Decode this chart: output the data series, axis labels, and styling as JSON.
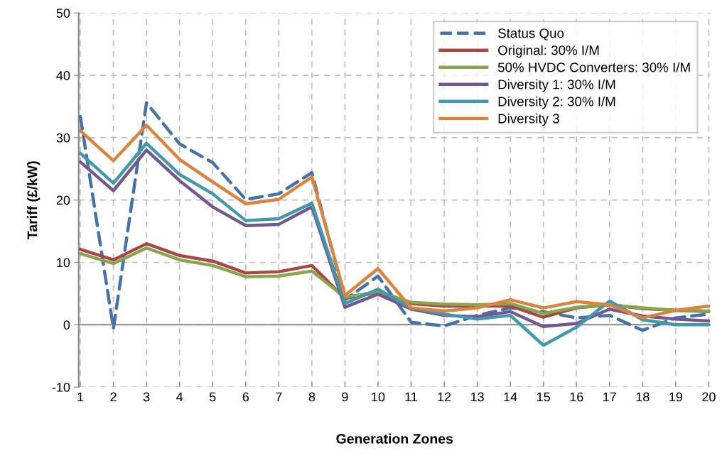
{
  "chart_data": {
    "type": "line",
    "xlabel": "Generation Zones",
    "ylabel": "Tariff (£/kW)",
    "categories": [
      "1",
      "2",
      "3",
      "4",
      "5",
      "6",
      "7",
      "8",
      "9",
      "10",
      "11",
      "12",
      "13",
      "14",
      "15",
      "16",
      "17",
      "18",
      "19",
      "20"
    ],
    "ylim": [
      -10,
      50
    ],
    "yticks": [
      -10,
      0,
      10,
      20,
      30,
      40,
      50
    ],
    "grid": true,
    "legend": "top right",
    "marker": "none",
    "series": [
      {
        "name": "Status Quo",
        "color": "#4572a7",
        "line_style": "dashed",
        "values": [
          33.4,
          -0.6,
          35.6,
          29.0,
          26.0,
          20.1,
          21.0,
          24.4,
          4.0,
          7.8,
          0.4,
          -0.2,
          1.5,
          2.7,
          2.1,
          1.1,
          1.5,
          -0.9,
          1.1,
          1.7
        ]
      },
      {
        "name": "Original: 30% I/M",
        "color": "#aa4643",
        "line_style": "solid",
        "values": [
          12.1,
          10.4,
          13.0,
          11.1,
          10.2,
          8.3,
          8.5,
          9.5,
          4.2,
          5.2,
          3.4,
          3.0,
          3.0,
          3.0,
          1.2,
          2.7,
          3.2,
          2.6,
          2.3,
          2.1
        ]
      },
      {
        "name": "50% HVDC Converters: 30% I/M",
        "color": "#89a54e",
        "line_style": "solid",
        "values": [
          11.4,
          9.8,
          12.3,
          10.4,
          9.5,
          7.7,
          7.8,
          8.6,
          4.4,
          5.3,
          3.6,
          3.3,
          3.2,
          3.4,
          1.8,
          2.8,
          3.2,
          2.7,
          2.3,
          2.2
        ]
      },
      {
        "name": "Diversity 1: 30% I/M",
        "color": "#71588f",
        "line_style": "solid",
        "values": [
          26.1,
          21.5,
          28.0,
          23.1,
          18.9,
          15.9,
          16.1,
          18.9,
          2.8,
          4.9,
          2.5,
          1.5,
          1.3,
          2.1,
          -0.3,
          0.2,
          2.5,
          1.4,
          0.9,
          0.6
        ]
      },
      {
        "name": "Diversity 2: 30% I/M",
        "color": "#4198af",
        "line_style": "solid",
        "values": [
          27.5,
          22.7,
          29.1,
          24.1,
          21.0,
          16.7,
          17.0,
          19.5,
          3.4,
          5.7,
          2.7,
          1.7,
          0.9,
          1.5,
          -3.3,
          -0.4,
          3.8,
          0.8,
          0.0,
          0.0
        ]
      },
      {
        "name": "Diversity 3",
        "color": "#db843d",
        "line_style": "solid",
        "values": [
          31.1,
          26.3,
          32.0,
          26.5,
          22.9,
          19.4,
          20.1,
          23.7,
          4.7,
          9.0,
          2.7,
          2.2,
          2.7,
          4.0,
          2.7,
          3.7,
          3.2,
          1.1,
          2.3,
          3.0
        ]
      }
    ]
  }
}
